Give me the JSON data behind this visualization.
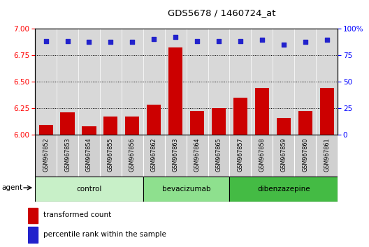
{
  "title": "GDS5678 / 1460724_at",
  "samples": [
    "GSM967852",
    "GSM967853",
    "GSM967854",
    "GSM967855",
    "GSM967856",
    "GSM967862",
    "GSM967863",
    "GSM967864",
    "GSM967865",
    "GSM967857",
    "GSM967858",
    "GSM967859",
    "GSM967860",
    "GSM967861"
  ],
  "transformed_counts": [
    6.09,
    6.21,
    6.08,
    6.17,
    6.17,
    6.28,
    6.82,
    6.22,
    6.25,
    6.35,
    6.44,
    6.16,
    6.22,
    6.44
  ],
  "percentile_ranks": [
    88,
    88,
    87,
    87,
    87,
    90,
    92,
    88,
    88,
    88,
    89,
    85,
    87,
    89
  ],
  "groups": [
    {
      "name": "control",
      "start": 0,
      "end": 5,
      "color": "#c8f0c8"
    },
    {
      "name": "bevacizumab",
      "start": 5,
      "end": 9,
      "color": "#8ee08e"
    },
    {
      "name": "dibenzazepine",
      "start": 9,
      "end": 14,
      "color": "#44bb44"
    }
  ],
  "ylim_left": [
    6.0,
    7.0
  ],
  "ylim_right": [
    0,
    100
  ],
  "yticks_left": [
    6.0,
    6.25,
    6.5,
    6.75,
    7.0
  ],
  "yticks_right": [
    0,
    25,
    50,
    75,
    100
  ],
  "bar_color": "#cc0000",
  "dot_color": "#2222cc",
  "bar_width": 0.65,
  "plot_bg_color": "#d8d8d8",
  "sample_cell_color": "#d0d0d0",
  "legend_bar_label": "transformed count",
  "legend_dot_label": "percentile rank within the sample",
  "agent_label": "agent"
}
